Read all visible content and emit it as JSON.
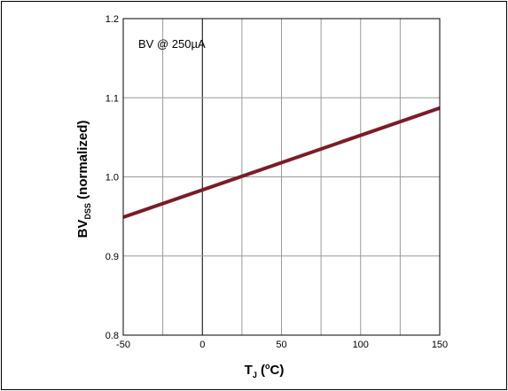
{
  "chart_data": {
    "type": "line",
    "xlabel_main": "T",
    "xlabel_sub": "J",
    "xlabel_open": " (",
    "xlabel_sup": "o",
    "xlabel_close": "C)",
    "ylabel_main": "BV",
    "ylabel_sub": "DSS",
    "ylabel_rest": " (normalized)",
    "annotation": "BV @ 250µA",
    "xlim": [
      -50,
      150
    ],
    "ylim": [
      0.8,
      1.2
    ],
    "x_ticks": [
      -50,
      0,
      50,
      100,
      150
    ],
    "x_tick_labels": [
      "-50",
      "0",
      "50",
      "100",
      "150"
    ],
    "y_ticks": [
      0.8,
      0.9,
      1.0,
      1.1,
      1.2
    ],
    "y_tick_labels": [
      "0.8",
      "0.9",
      "1.0",
      "1.1",
      "1.2"
    ],
    "x_minor_step": 25,
    "grid": true,
    "series": [
      {
        "x": [
          -50,
          150
        ],
        "y": [
          0.949,
          1.087
        ]
      }
    ]
  },
  "colors": {
    "line": "#7b1c26",
    "grid": "#9a9a9a",
    "axis": "#000000"
  }
}
